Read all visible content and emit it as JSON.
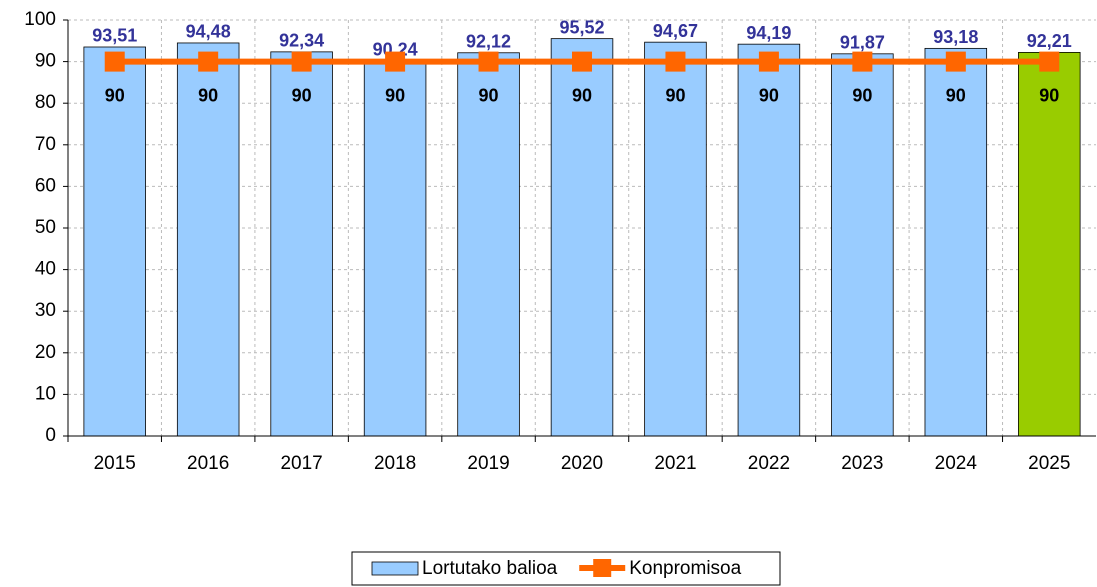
{
  "chart_data": {
    "type": "bar",
    "categories": [
      "2015",
      "2016",
      "2017",
      "2018",
      "2019",
      "2020",
      "2021",
      "2022",
      "2023",
      "2024",
      "2025"
    ],
    "series": [
      {
        "name": "Lortutako balioa",
        "type": "bar",
        "color": "#99ccff",
        "colors": [
          "#99ccff",
          "#99ccff",
          "#99ccff",
          "#99ccff",
          "#99ccff",
          "#99ccff",
          "#99ccff",
          "#99ccff",
          "#99ccff",
          "#99ccff",
          "#99cc00"
        ],
        "values": [
          93.51,
          94.48,
          92.34,
          90.24,
          92.12,
          95.52,
          94.67,
          94.19,
          91.87,
          93.18,
          92.21
        ],
        "value_labels": [
          "93,51",
          "94,48",
          "92,34",
          "90,24",
          "92,12",
          "95,52",
          "94,67",
          "94,19",
          "91,87",
          "93,18",
          "92,21"
        ]
      },
      {
        "name": "Konpromisoa",
        "type": "line",
        "color": "#ff6600",
        "values": [
          90,
          90,
          90,
          90,
          90,
          90,
          90,
          90,
          90,
          90,
          90
        ]
      }
    ],
    "ylim": [
      0,
      100
    ],
    "yticks": [
      0,
      10,
      20,
      30,
      40,
      50,
      60,
      70,
      80,
      90,
      100
    ],
    "grid": true,
    "legend": "bottom"
  }
}
